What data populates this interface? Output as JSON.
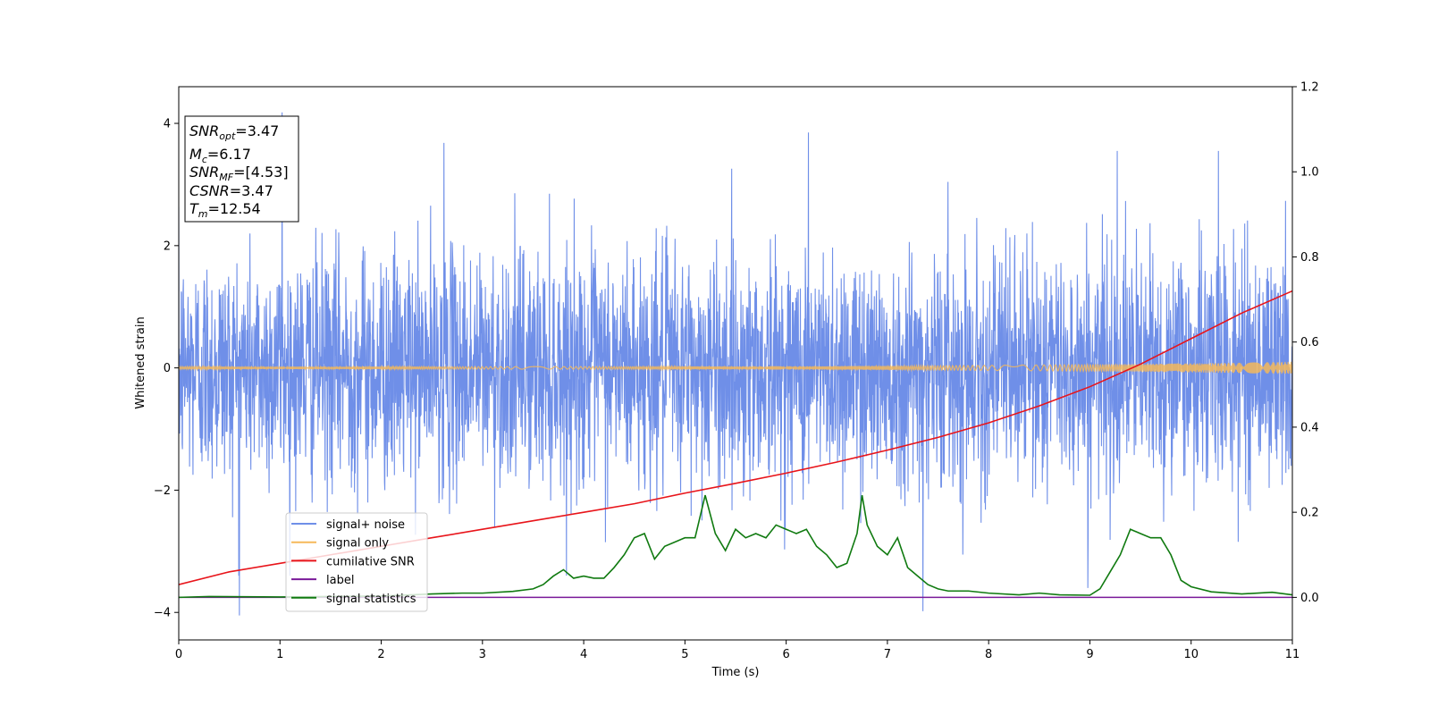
{
  "chart_data": {
    "type": "line",
    "xlabel": "Time (s)",
    "ylabel": "Whitened strain",
    "xlim": [
      0,
      11
    ],
    "ylim": [
      -4.45,
      4.6
    ],
    "y2lim": [
      -0.1,
      1.2
    ],
    "xticks": [
      "0",
      "1",
      "2",
      "3",
      "4",
      "5",
      "6",
      "7",
      "8",
      "9",
      "10",
      "11"
    ],
    "xtick_values": [
      0,
      1,
      2,
      3,
      4,
      5,
      6,
      7,
      8,
      9,
      10,
      11
    ],
    "yticks": [
      "−4",
      "−2",
      "0",
      "2",
      "4"
    ],
    "ytick_values": [
      -4,
      -2,
      0,
      2,
      4
    ],
    "y2ticks": [
      "0.0",
      "0.2",
      "0.4",
      "0.6",
      "0.8",
      "1.0",
      "1.2"
    ],
    "y2tick_values": [
      0.0,
      0.2,
      0.4,
      0.6,
      0.8,
      1.0,
      1.2
    ],
    "grid": false,
    "legend_position": "lower-left",
    "annotation": {
      "lines": [
        {
          "sym": "SNR",
          "sub": "opt",
          "rest": "=3.47"
        },
        {
          "sym": "M",
          "sub": "c",
          "rest": "=6.17"
        },
        {
          "sym": "SNR",
          "sub": "MF",
          "rest": "=[4.53]"
        },
        {
          "sym": "CSNR",
          "sub": "",
          "rest": "=3.47"
        },
        {
          "sym": "T",
          "sub": "m",
          "rest": "=12.54"
        }
      ]
    },
    "series": [
      {
        "name": "signal+ noise",
        "color": "#6f8fe8",
        "axis": "left",
        "kind": "noise",
        "duration": 11,
        "sigma": 0.95,
        "peaks": [
          {
            "x": 0.6,
            "y": -4.05
          },
          {
            "x": 1.02,
            "y": 4.18
          },
          {
            "x": 2.62,
            "y": 3.68
          },
          {
            "x": 6.22,
            "y": 3.85
          },
          {
            "x": 7.35,
            "y": -3.98
          },
          {
            "x": 10.27,
            "y": 3.55
          },
          {
            "x": 9.27,
            "y": 3.55
          },
          {
            "x": 8.98,
            "y": -3.6
          }
        ]
      },
      {
        "name": "signal only",
        "color": "#f5b95a",
        "axis": "left",
        "kind": "chirp",
        "amp_start": 0.02,
        "amp_end": 0.1
      },
      {
        "name": "cumilative SNR",
        "color": "#e8141a",
        "axis": "right",
        "x": [
          0,
          0.5,
          1,
          1.5,
          2,
          2.5,
          3,
          3.5,
          4,
          4.5,
          5,
          5.5,
          6,
          6.5,
          7,
          7.5,
          8,
          8.5,
          9,
          9.5,
          10,
          10.5,
          11
        ],
        "y": [
          0.03,
          0.06,
          0.08,
          0.1,
          0.12,
          0.14,
          0.16,
          0.18,
          0.2,
          0.22,
          0.245,
          0.268,
          0.292,
          0.318,
          0.346,
          0.376,
          0.41,
          0.45,
          0.495,
          0.548,
          0.608,
          0.668,
          0.72
        ]
      },
      {
        "name": "label",
        "color": "#7a1a99",
        "axis": "right",
        "x": [
          0,
          11
        ],
        "y": [
          0.0,
          0.0
        ]
      },
      {
        "name": "signal statistics",
        "color": "#107a10",
        "axis": "right",
        "x": [
          0,
          0.3,
          1,
          2,
          2.5,
          2.8,
          3.0,
          3.3,
          3.5,
          3.6,
          3.7,
          3.8,
          3.9,
          4.0,
          4.1,
          4.2,
          4.3,
          4.4,
          4.5,
          4.6,
          4.7,
          4.8,
          4.9,
          5.0,
          5.1,
          5.2,
          5.3,
          5.4,
          5.5,
          5.6,
          5.7,
          5.8,
          5.9,
          6.0,
          6.1,
          6.2,
          6.3,
          6.4,
          6.5,
          6.6,
          6.7,
          6.75,
          6.8,
          6.9,
          7.0,
          7.1,
          7.2,
          7.3,
          7.4,
          7.5,
          7.6,
          7.8,
          8.0,
          8.3,
          8.5,
          8.7,
          9.0,
          9.1,
          9.2,
          9.3,
          9.4,
          9.5,
          9.6,
          9.7,
          9.8,
          9.9,
          10.0,
          10.2,
          10.5,
          10.8,
          11.0
        ],
        "y": [
          0.0,
          0.002,
          0.001,
          0.003,
          0.008,
          0.01,
          0.01,
          0.014,
          0.02,
          0.03,
          0.05,
          0.065,
          0.045,
          0.05,
          0.045,
          0.045,
          0.07,
          0.1,
          0.14,
          0.15,
          0.09,
          0.12,
          0.13,
          0.14,
          0.14,
          0.24,
          0.15,
          0.11,
          0.16,
          0.14,
          0.15,
          0.14,
          0.17,
          0.16,
          0.15,
          0.16,
          0.12,
          0.1,
          0.07,
          0.08,
          0.15,
          0.24,
          0.17,
          0.12,
          0.1,
          0.14,
          0.07,
          0.05,
          0.03,
          0.02,
          0.015,
          0.015,
          0.01,
          0.006,
          0.01,
          0.006,
          0.005,
          0.02,
          0.06,
          0.1,
          0.16,
          0.15,
          0.14,
          0.14,
          0.1,
          0.04,
          0.025,
          0.013,
          0.008,
          0.012,
          0.006
        ]
      }
    ]
  }
}
